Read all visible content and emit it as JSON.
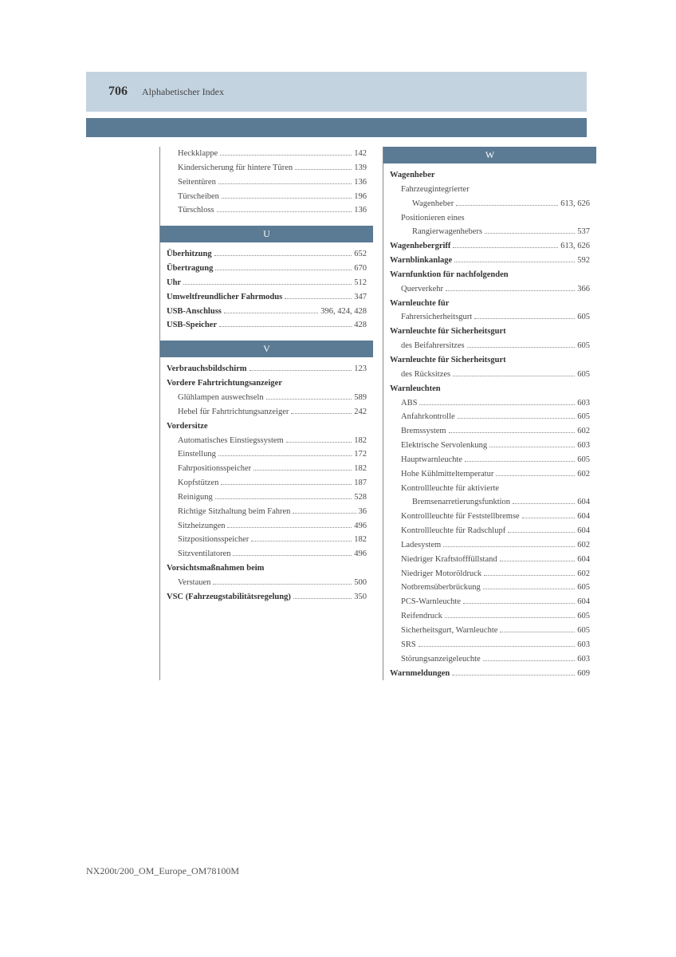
{
  "header": {
    "page_number": "706",
    "title": "Alphabetischer Index"
  },
  "footer": "NX200t/200_OM_Europe_OM78100M",
  "sections": {
    "left_top": [
      {
        "label": "Heckklappe",
        "page": "142",
        "indent": 1
      },
      {
        "label": "Kindersicherung für hintere Türen",
        "page": "139",
        "indent": 1
      },
      {
        "label": "Seitentüren",
        "page": "136",
        "indent": 1
      },
      {
        "label": "Türscheiben",
        "page": "196",
        "indent": 1
      },
      {
        "label": "Türschloss",
        "page": "136",
        "indent": 1
      }
    ],
    "U_header": "U",
    "U": [
      {
        "label": "Überhitzung",
        "page": "652",
        "bold": true
      },
      {
        "label": "Übertragung",
        "page": "670",
        "bold": true
      },
      {
        "label": "Uhr",
        "page": "512",
        "bold": true
      },
      {
        "label": "Umweltfreundlicher Fahrmodus",
        "page": "347",
        "bold": true
      },
      {
        "label": "USB-Anschluss",
        "page": "396, 424, 428",
        "bold": true
      },
      {
        "label": "USB-Speicher",
        "page": "428",
        "bold": true
      }
    ],
    "V_header": "V",
    "V": [
      {
        "label": "Verbrauchsbildschirm",
        "page": "123",
        "bold": true
      },
      {
        "label": "Vordere Fahrtrichtungsanzeiger",
        "page": "",
        "bold": true,
        "noline": true
      },
      {
        "label": "Glühlampen auswechseln",
        "page": "589",
        "indent": 1
      },
      {
        "label": "Hebel für Fahrtrichtungsanzeiger",
        "page": "242",
        "indent": 1
      },
      {
        "label": "Vordersitze",
        "page": "",
        "bold": true,
        "noline": true
      },
      {
        "label": "Automatisches Einstiegssystem",
        "page": "182",
        "indent": 1
      },
      {
        "label": "Einstellung",
        "page": "172",
        "indent": 1
      },
      {
        "label": "Fahrpositionsspeicher",
        "page": "182",
        "indent": 1
      },
      {
        "label": "Kopfstützen",
        "page": "187",
        "indent": 1
      },
      {
        "label": "Reinigung",
        "page": "528",
        "indent": 1
      },
      {
        "label": "Richtige Sitzhaltung beim Fahren",
        "page": "36",
        "indent": 1
      },
      {
        "label": "Sitzheizungen",
        "page": "496",
        "indent": 1
      },
      {
        "label": "Sitzpositionsspeicher",
        "page": "182",
        "indent": 1
      },
      {
        "label": "Sitzventilatoren",
        "page": "496",
        "indent": 1
      },
      {
        "label": "Vorsichtsmaßnahmen beim",
        "page": "",
        "bold": true,
        "noline": true
      },
      {
        "label": "Verstauen",
        "page": "500",
        "indent": 1
      },
      {
        "label": "VSC (Fahrzeugstabilitätsregelung)",
        "page": "350",
        "bold": true
      }
    ],
    "W_header": "W",
    "W": [
      {
        "label": "Wagenheber",
        "page": "",
        "bold": true,
        "noline": true
      },
      {
        "label": "Fahrzeugintegrierter",
        "page": "",
        "indent": 1,
        "noline": true
      },
      {
        "label": "Wagenheber",
        "page": "613, 626",
        "indent": 2
      },
      {
        "label": "Positionieren eines",
        "page": "",
        "indent": 1,
        "noline": true
      },
      {
        "label": "Rangierwagenhebers",
        "page": "537",
        "indent": 2
      },
      {
        "label": "Wagenhebergriff",
        "page": "613, 626",
        "bold": true
      },
      {
        "label": "Warnblinkanlage",
        "page": "592",
        "bold": true
      },
      {
        "label": "Warnfunktion für nachfolgenden",
        "page": "",
        "bold": true,
        "noline": true
      },
      {
        "label": "Querverkehr",
        "page": "366",
        "indent": 1
      },
      {
        "label": "Warnleuchte für",
        "page": "",
        "bold": true,
        "noline": true
      },
      {
        "label": "Fahrersicherheitsgurt",
        "page": "605",
        "indent": 1
      },
      {
        "label": "Warnleuchte für Sicherheitsgurt",
        "page": "",
        "bold": true,
        "noline": true
      },
      {
        "label": "des Beifahrersitzes",
        "page": "605",
        "indent": 1
      },
      {
        "label": "Warnleuchte für Sicherheitsgurt",
        "page": "",
        "bold": true,
        "noline": true
      },
      {
        "label": "des Rücksitzes",
        "page": "605",
        "indent": 1
      },
      {
        "label": "Warnleuchten",
        "page": "",
        "bold": true,
        "noline": true
      },
      {
        "label": "ABS",
        "page": "603",
        "indent": 1
      },
      {
        "label": "Anfahrkontrolle",
        "page": "605",
        "indent": 1
      },
      {
        "label": "Bremssystem",
        "page": "602",
        "indent": 1
      },
      {
        "label": "Elektrische Servolenkung",
        "page": "603",
        "indent": 1
      },
      {
        "label": "Hauptwarnleuchte",
        "page": "605",
        "indent": 1
      },
      {
        "label": "Hohe Kühlmitteltemperatur",
        "page": "602",
        "indent": 1
      },
      {
        "label": "Kontrollleuchte für aktivierte",
        "page": "",
        "indent": 1,
        "noline": true
      },
      {
        "label": "Bremsenarretierungsfunktion",
        "page": "604",
        "indent": 2
      },
      {
        "label": "Kontrollleuchte für Feststellbremse",
        "page": "604",
        "indent": 1
      },
      {
        "label": "Kontrollleuchte für Radschlupf",
        "page": "604",
        "indent": 1
      },
      {
        "label": "Ladesystem",
        "page": "602",
        "indent": 1
      },
      {
        "label": "Niedriger Kraftstofffüllstand",
        "page": "604",
        "indent": 1
      },
      {
        "label": "Niedriger Motoröldruck",
        "page": "602",
        "indent": 1
      },
      {
        "label": "Notbremsüberbrückung",
        "page": "605",
        "indent": 1
      },
      {
        "label": "PCS-Warnleuchte",
        "page": "604",
        "indent": 1
      },
      {
        "label": "Reifendruck",
        "page": "605",
        "indent": 1
      },
      {
        "label": "Sicherheitsgurt, Warnleuchte",
        "page": "605",
        "indent": 1
      },
      {
        "label": "SRS",
        "page": "603",
        "indent": 1
      },
      {
        "label": "Störungsanzeigeleuchte",
        "page": "603",
        "indent": 1
      },
      {
        "label": "Warnmeldungen",
        "page": "609",
        "bold": true
      }
    ]
  }
}
